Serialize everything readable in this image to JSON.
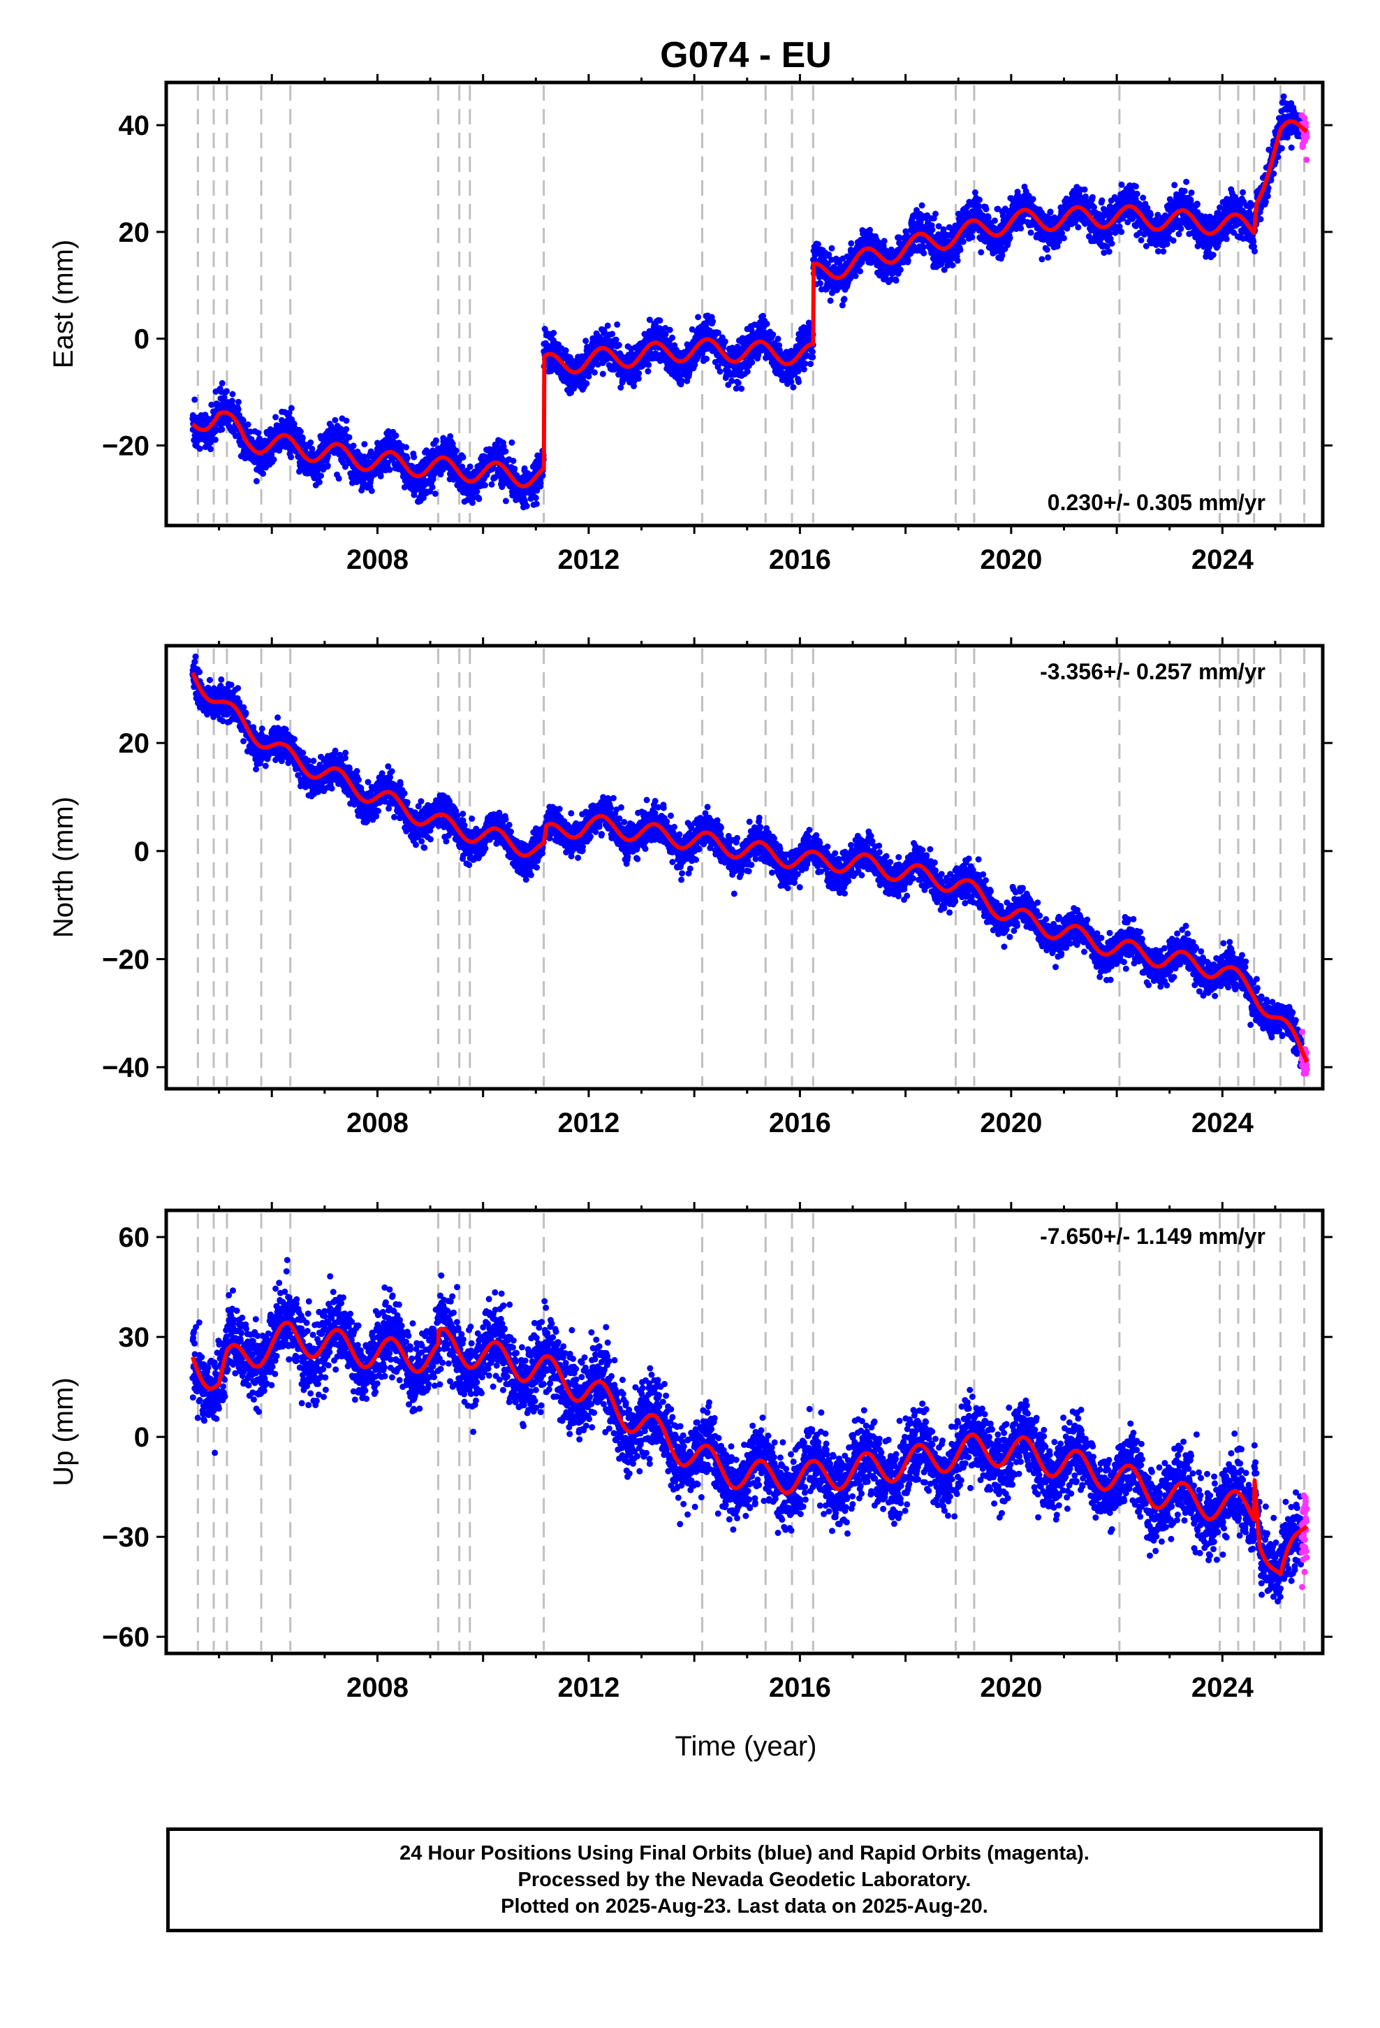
{
  "title": "G074 - EU",
  "xlabel": "Time (year)",
  "colors": {
    "final": "#0000ff",
    "rapid": "#ff33ff",
    "model": "#ff0000",
    "events": "#bfbfbf"
  },
  "footer": {
    "line1": "24 Hour Positions Using Final Orbits (blue) and Rapid Orbits (magenta).",
    "line2": "Processed by the Nevada Geodetic Laboratory.",
    "line3": "Plotted on 2025-Aug-23. Last data on 2025-Aug-20."
  },
  "chart_data": {
    "type": "scatter",
    "x_range": [
      2004.0,
      2025.9
    ],
    "x_ticks": [
      2008,
      2012,
      2016,
      2020,
      2024
    ],
    "event_lines": [
      2004.6,
      2004.9,
      2005.15,
      2005.8,
      2006.35,
      2009.15,
      2009.55,
      2009.75,
      2011.15,
      2014.15,
      2015.35,
      2015.85,
      2016.25,
      2018.95,
      2019.3,
      2022.05,
      2023.95,
      2024.3,
      2024.6,
      2025.1,
      2025.55
    ],
    "rapid_from": 2025.5,
    "panels": [
      {
        "id": "east",
        "ylabel": "East (mm)",
        "rate_label": "0.230+/- 0.305 mm/yr",
        "ylim": [
          -35,
          48
        ],
        "y_ticks": [
          -20,
          0,
          20,
          40
        ],
        "scatter_sd": 1.8,
        "seasonal_amp": 2.5,
        "model": [
          [
            2004.5,
            -16
          ],
          [
            2005.0,
            -14
          ],
          [
            2005.5,
            -19
          ],
          [
            2006.2,
            -20
          ],
          [
            2008,
            -23
          ],
          [
            2010,
            -25
          ],
          [
            2011.15,
            -26
          ],
          [
            2011.15,
            -5
          ],
          [
            2012,
            -4
          ],
          [
            2014,
            -2
          ],
          [
            2016.25,
            -3
          ],
          [
            2016.25,
            12
          ],
          [
            2018,
            17
          ],
          [
            2020,
            22
          ],
          [
            2022,
            23
          ],
          [
            2024.6,
            21
          ],
          [
            2024.65,
            27
          ],
          [
            2025.1,
            38
          ],
          [
            2025.6,
            40
          ]
        ]
      },
      {
        "id": "north",
        "ylabel": "North (mm)",
        "rate_label": "-3.356+/- 0.257 mm/yr",
        "ylim": [
          -44,
          38
        ],
        "y_ticks": [
          -40,
          -20,
          0,
          20
        ],
        "scatter_sd": 1.6,
        "seasonal_amp": 2.3,
        "model": [
          [
            2004.5,
            33
          ],
          [
            2005.15,
            26
          ],
          [
            2006.2,
            18
          ],
          [
            2008,
            10
          ],
          [
            2009.2,
            5
          ],
          [
            2011.15,
            0
          ],
          [
            2011.2,
            3
          ],
          [
            2012,
            5
          ],
          [
            2014,
            2
          ],
          [
            2016.25,
            -2
          ],
          [
            2017,
            -2
          ],
          [
            2019,
            -6
          ],
          [
            2020,
            -12
          ],
          [
            2022,
            -18
          ],
          [
            2024,
            -22
          ],
          [
            2024.6,
            -26
          ],
          [
            2025.6,
            -38
          ]
        ]
      },
      {
        "id": "up",
        "ylabel": "Up (mm)",
        "rate_label": "-7.650+/- 1.149 mm/yr",
        "ylim": [
          -65,
          68
        ],
        "y_ticks": [
          -60,
          -30,
          0,
          30,
          60
        ],
        "scatter_sd": 5.5,
        "seasonal_amp": 6,
        "model": [
          [
            2004.5,
            24
          ],
          [
            2005.0,
            16
          ],
          [
            2005.15,
            22
          ],
          [
            2006.35,
            30
          ],
          [
            2008,
            25
          ],
          [
            2009.15,
            24
          ],
          [
            2009.15,
            28
          ],
          [
            2011.15,
            20
          ],
          [
            2012,
            14
          ],
          [
            2012.8,
            6
          ],
          [
            2013.2,
            2
          ],
          [
            2014,
            -6
          ],
          [
            2015,
            -12
          ],
          [
            2016.25,
            -12
          ],
          [
            2018,
            -8
          ],
          [
            2019.3,
            -4
          ],
          [
            2020,
            -4
          ],
          [
            2021,
            -8
          ],
          [
            2022,
            -12
          ],
          [
            2023,
            -18
          ],
          [
            2024.6,
            -22
          ],
          [
            2024.6,
            -8
          ],
          [
            2024.7,
            -28
          ],
          [
            2025.1,
            -44
          ],
          [
            2025.6,
            -24
          ]
        ]
      }
    ]
  }
}
